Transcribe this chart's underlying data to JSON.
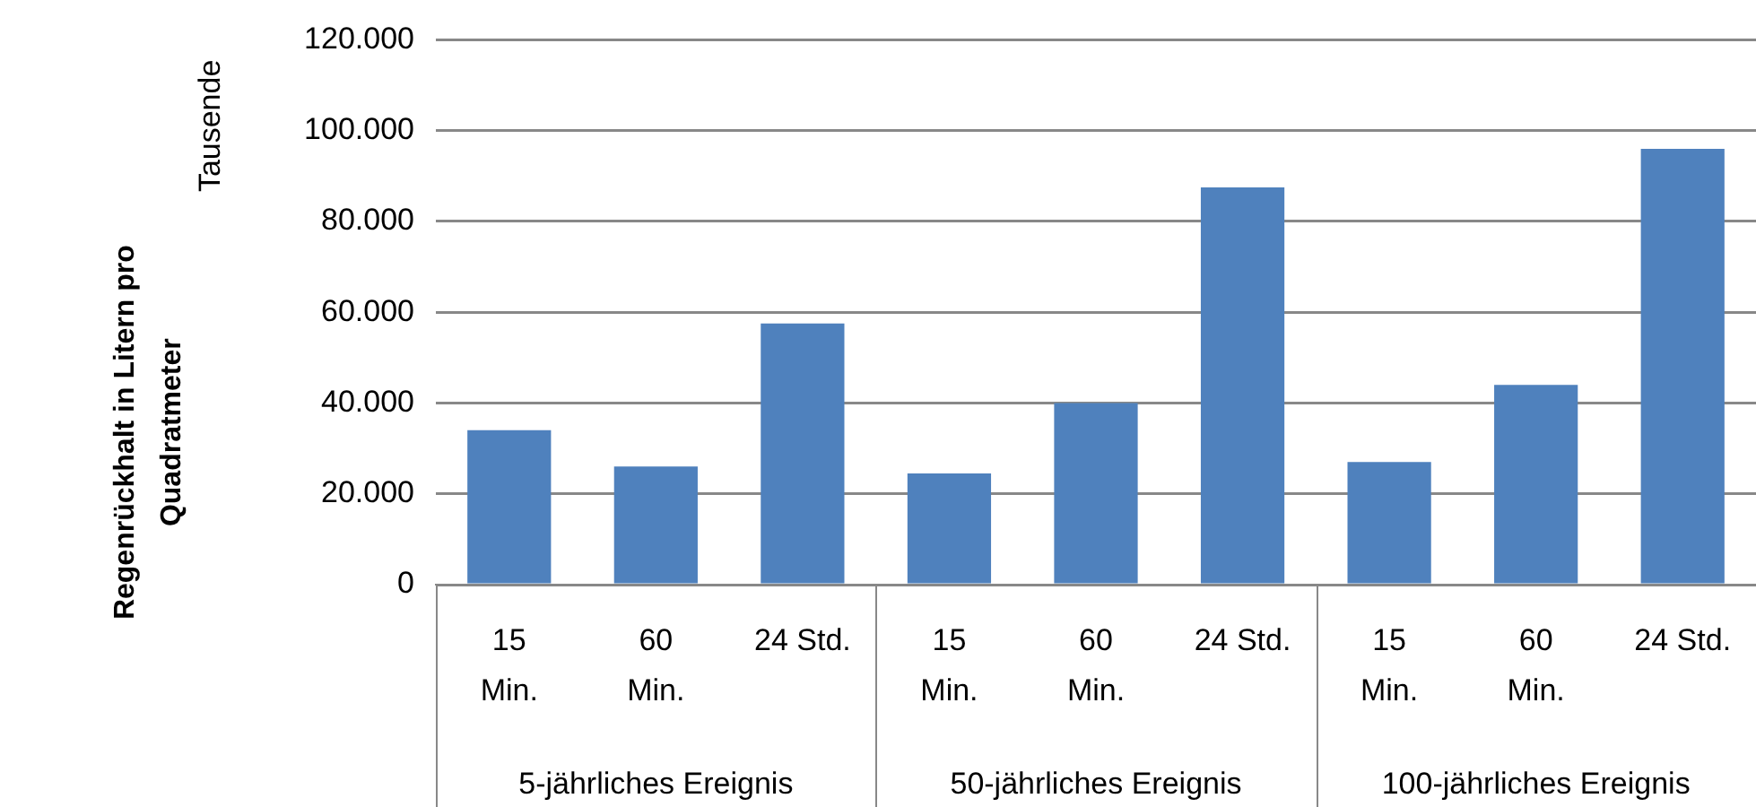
{
  "chart_data": {
    "type": "bar",
    "ylabel": "Regenrückhalt in Litern pro Quadratmeter",
    "categories": [
      "15 Min.",
      "60 Min.",
      "24 Std.",
      "15 Min.",
      "60 Min.",
      "24 Std.",
      "15 Min.",
      "60 Min.",
      "24 Std."
    ],
    "values": [
      34000,
      26000,
      57500,
      24500,
      40000,
      87500,
      27000,
      44000,
      96000
    ],
    "color": "#4f81bd",
    "ylim": [
      0,
      120000
    ],
    "yticks": [
      0,
      {
        "value": 20000,
        "label": "20.000"
      },
      {
        "value": 40000,
        "label": "40.000"
      },
      {
        "value": 60000,
        "label": "60.000"
      },
      {
        "value": 80000,
        "label": "80.000"
      },
      {
        "value": 100000,
        "label": "100.000"
      },
      {
        "value": 120000,
        "label": "120.000"
      }
    ],
    "grid": "y",
    "legend": false,
    "annotations": [
      "Tausende",
      "5-jährliches Ereignis",
      "50-jährliches Ereignis",
      "100-jährliches Ereignis"
    ]
  }
}
